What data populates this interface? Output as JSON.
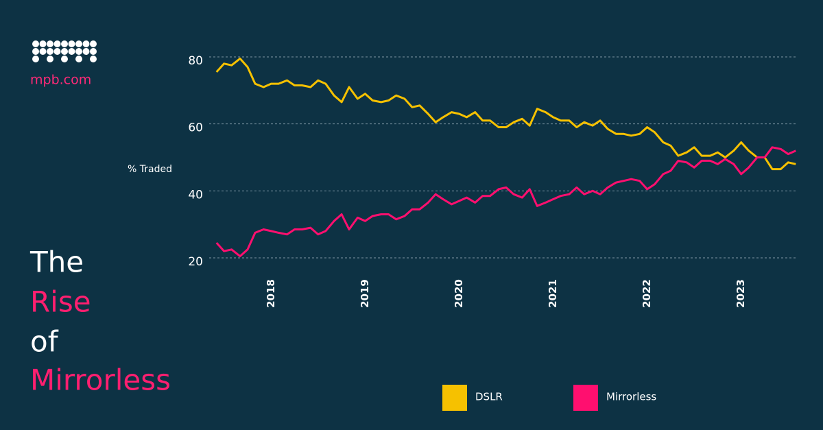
{
  "brand": "mpb.com",
  "title_lines": [
    "The",
    "Rise",
    "of",
    "Mirrorless"
  ],
  "chart_data": {
    "type": "line",
    "y_label": "% Traded",
    "x": [
      2017.42,
      2017.5,
      2017.58,
      2017.67,
      2017.75,
      2017.83,
      2017.92,
      2018.0,
      2018.08,
      2018.17,
      2018.25,
      2018.33,
      2018.42,
      2018.5,
      2018.58,
      2018.67,
      2018.75,
      2018.83,
      2018.92,
      2019.0,
      2019.08,
      2019.17,
      2019.25,
      2019.33,
      2019.42,
      2019.5,
      2019.58,
      2019.67,
      2019.75,
      2019.83,
      2019.92,
      2020.0,
      2020.08,
      2020.17,
      2020.25,
      2020.33,
      2020.42,
      2020.5,
      2020.58,
      2020.67,
      2020.75,
      2020.83,
      2020.92,
      2021.0,
      2021.08,
      2021.17,
      2021.25,
      2021.33,
      2021.42,
      2021.5,
      2021.58,
      2021.67,
      2021.75,
      2021.83,
      2021.92,
      2022.0,
      2022.08,
      2022.17,
      2022.25,
      2022.33,
      2022.42,
      2022.5,
      2022.58,
      2022.67,
      2022.75,
      2022.83,
      2022.92,
      2023.0,
      2023.08,
      2023.17,
      2023.25,
      2023.33,
      2023.42,
      2023.5,
      2023.58
    ],
    "series": [
      {
        "name": "DSLR",
        "color": "#f6c100",
        "values": [
          75.5,
          78,
          77.5,
          79.5,
          77,
          72,
          71,
          72,
          72,
          73,
          71.5,
          71.5,
          71,
          73,
          72,
          68.5,
          66.5,
          71,
          67.5,
          69,
          67,
          66.5,
          67,
          68.5,
          67.5,
          65,
          65.5,
          63,
          60.5,
          62,
          63.5,
          63,
          62,
          63.5,
          61,
          61,
          59,
          59,
          60.5,
          61.5,
          59.5,
          64.5,
          63.5,
          62,
          61,
          61,
          59,
          60.5,
          59.5,
          61,
          58.5,
          57,
          57,
          56.5,
          57,
          59,
          57.5,
          54.5,
          53.5,
          50.5,
          51.5,
          53,
          50.5,
          50.5,
          51.5,
          50,
          52,
          54.5,
          52,
          50,
          50,
          46.5,
          46.5,
          48.5,
          48
        ]
      },
      {
        "name": "Mirrorless",
        "color": "#ff0f6f",
        "values": [
          24.5,
          22,
          22.5,
          20.5,
          22.5,
          27.5,
          28.5,
          28,
          27.5,
          27,
          28.5,
          28.5,
          29,
          27,
          28,
          31,
          33,
          28.5,
          32,
          31,
          32.5,
          33,
          33,
          31.5,
          32.5,
          34.5,
          34.5,
          36.5,
          39,
          37.5,
          36,
          37,
          38,
          36.5,
          38.5,
          38.5,
          40.5,
          41,
          39,
          38,
          40.5,
          35.5,
          36.5,
          37.5,
          38.5,
          39,
          41,
          39,
          40,
          39,
          41,
          42.5,
          43,
          43.5,
          43,
          40.5,
          42,
          45,
          46,
          49,
          48.5,
          47,
          49,
          49,
          48,
          49.5,
          48,
          45,
          47,
          50,
          50,
          53,
          52.5,
          51,
          52
        ]
      }
    ],
    "xlim": [
      2017.4,
      2023.6
    ],
    "xticks": [
      2018,
      2019,
      2020,
      2021,
      2022,
      2023
    ],
    "ylim": [
      20,
      80
    ],
    "yticks": [
      20,
      40,
      60,
      80
    ],
    "grid": true
  }
}
